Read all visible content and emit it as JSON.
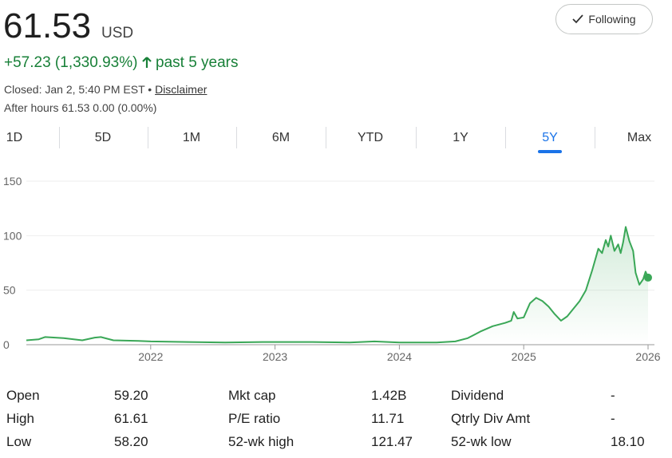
{
  "quote": {
    "price": "61.53",
    "currency": "USD",
    "change": "+57.23 (1,330.93%)",
    "period": "past 5 years",
    "closed": "Closed: Jan 2, 5:40 PM EST",
    "separator": "•",
    "disclaimer": "Disclaimer",
    "after_hours": "After hours 61.53 0.00 (0.00%)",
    "follow_button": "Following"
  },
  "tabs": [
    "1D",
    "5D",
    "1M",
    "6M",
    "YTD",
    "1Y",
    "5Y",
    "Max"
  ],
  "selected_tab": 6,
  "chart_data": {
    "type": "line",
    "x": [
      2021.0,
      2021.1,
      2021.15,
      2021.3,
      2021.45,
      2021.55,
      2021.6,
      2021.7,
      2021.9,
      2022.0,
      2022.3,
      2022.6,
      2022.9,
      2023.0,
      2023.3,
      2023.6,
      2023.8,
      2024.0,
      2024.3,
      2024.45,
      2024.55,
      2024.6,
      2024.65,
      2024.75,
      2024.85,
      2024.9,
      2024.92,
      2024.95,
      2025.0,
      2025.05,
      2025.1,
      2025.15,
      2025.2,
      2025.25,
      2025.3,
      2025.35,
      2025.4,
      2025.45,
      2025.5,
      2025.55,
      2025.58,
      2025.6,
      2025.63,
      2025.66,
      2025.68,
      2025.7,
      2025.73,
      2025.76,
      2025.78,
      2025.8,
      2025.82,
      2025.85,
      2025.88,
      2025.9,
      2025.93,
      2025.96,
      2025.98,
      2026.0
    ],
    "series": [
      {
        "color": "#3aa757",
        "values": [
          4,
          5,
          7,
          6,
          4,
          6.5,
          7,
          4,
          3.5,
          3,
          2.5,
          2,
          2.5,
          2.5,
          2.5,
          2,
          3,
          2,
          2,
          3,
          6,
          9,
          12,
          17,
          20,
          22,
          30,
          24,
          25,
          38,
          43,
          40,
          35,
          28,
          22,
          26,
          33,
          40,
          50,
          68,
          80,
          88,
          84,
          96,
          90,
          100,
          86,
          92,
          84,
          94,
          108,
          95,
          86,
          66,
          55,
          60,
          67,
          61.53
        ]
      }
    ],
    "xlim": [
      2021.0,
      2026.0
    ],
    "xticks": [
      2022,
      2023,
      2024,
      2025,
      2026
    ],
    "ylim": [
      0,
      150
    ],
    "yticks": [
      0,
      50,
      100,
      150
    ],
    "grid": true
  },
  "stats": [
    [
      [
        "Open",
        "59.20"
      ],
      [
        "Mkt cap",
        "1.42B"
      ],
      [
        "Dividend",
        "-"
      ]
    ],
    [
      [
        "High",
        "61.61"
      ],
      [
        "P/E ratio",
        "11.71"
      ],
      [
        "Qtrly Div Amt",
        "-"
      ]
    ],
    [
      [
        "Low",
        "58.20"
      ],
      [
        "52-wk high",
        "121.47"
      ],
      [
        "52-wk low",
        "18.10"
      ]
    ]
  ]
}
